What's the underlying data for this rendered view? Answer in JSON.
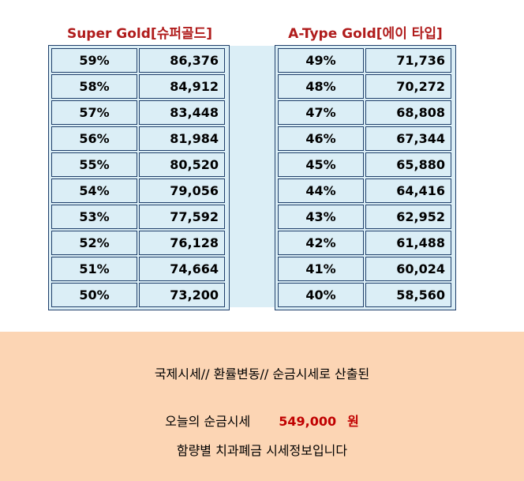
{
  "left_table": {
    "title": "Super Gold[슈퍼골드]",
    "rows": [
      {
        "pct": "59%",
        "value": "86,376"
      },
      {
        "pct": "58%",
        "value": "84,912"
      },
      {
        "pct": "57%",
        "value": "83,448"
      },
      {
        "pct": "56%",
        "value": "81,984"
      },
      {
        "pct": "55%",
        "value": "80,520"
      },
      {
        "pct": "54%",
        "value": "79,056"
      },
      {
        "pct": "53%",
        "value": "77,592"
      },
      {
        "pct": "52%",
        "value": "76,128"
      },
      {
        "pct": "51%",
        "value": "74,664"
      },
      {
        "pct": "50%",
        "value": "73,200"
      }
    ]
  },
  "right_table": {
    "title": "A-Type Gold[에이 타입]",
    "rows": [
      {
        "pct": "49%",
        "value": "71,736"
      },
      {
        "pct": "48%",
        "value": "70,272"
      },
      {
        "pct": "47%",
        "value": "68,808"
      },
      {
        "pct": "46%",
        "value": "67,344"
      },
      {
        "pct": "45%",
        "value": "65,880"
      },
      {
        "pct": "44%",
        "value": "64,416"
      },
      {
        "pct": "43%",
        "value": "62,952"
      },
      {
        "pct": "42%",
        "value": "61,488"
      },
      {
        "pct": "41%",
        "value": "60,024"
      },
      {
        "pct": "40%",
        "value": "58,560"
      }
    ]
  },
  "footer": {
    "line1": "국제시세// 환률변동// 순금시세로 산출된",
    "line2_label": "오늘의 순금시세",
    "gold_price": "549,000",
    "currency": "원",
    "line3": "함량별 치과폐금 시세정보입니다"
  },
  "colors": {
    "title_red": "#b01c1c",
    "cell_bg": "#dbeef6",
    "border": "#1f3f6a",
    "footer_bg": "#fcd5b4",
    "price_red": "#c00000"
  }
}
